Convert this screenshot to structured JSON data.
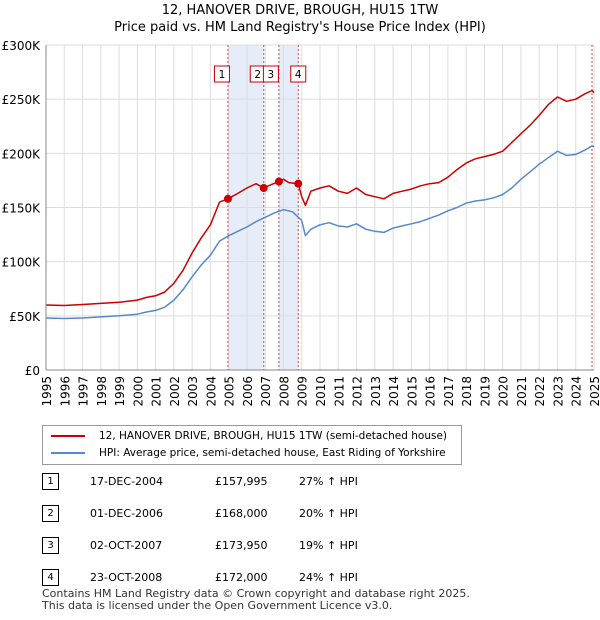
{
  "title": {
    "line1": "12, HANOVER DRIVE, BROUGH, HU15 1TW",
    "line2": "Price paid vs. HM Land Registry's House Price Index (HPI)"
  },
  "chart_data": {
    "type": "line",
    "title": "12, HANOVER DRIVE, BROUGH, HU15 1TW — Price paid vs. HM Land Registry's House Price Index (HPI)",
    "xlim": [
      1995,
      2025
    ],
    "ylim": [
      0,
      300000
    ],
    "y_ticks": [
      {
        "value": 0,
        "label": "£0"
      },
      {
        "value": 50000,
        "label": "£50K"
      },
      {
        "value": 100000,
        "label": "£100K"
      },
      {
        "value": 150000,
        "label": "£150K"
      },
      {
        "value": 200000,
        "label": "£200K"
      },
      {
        "value": 250000,
        "label": "£250K"
      },
      {
        "value": 300000,
        "label": "£300K"
      }
    ],
    "x_ticks": [
      "1995",
      "1996",
      "1997",
      "1998",
      "1999",
      "2000",
      "2001",
      "2002",
      "2003",
      "2004",
      "2005",
      "2006",
      "2007",
      "2008",
      "2009",
      "2010",
      "2011",
      "2012",
      "2013",
      "2014",
      "2015",
      "2016",
      "2017",
      "2018",
      "2019",
      "2020",
      "2021",
      "2022",
      "2023",
      "2024",
      "2025"
    ],
    "grid": true,
    "series": [
      {
        "name": "12, HANOVER DRIVE, BROUGH, HU15 1TW (semi-detached house)",
        "color": "#cc0000",
        "points": [
          [
            1995.0,
            60000
          ],
          [
            1996.0,
            59500
          ],
          [
            1997.0,
            60500
          ],
          [
            1998.0,
            61500
          ],
          [
            1999.0,
            62500
          ],
          [
            2000.0,
            64500
          ],
          [
            2000.5,
            67000
          ],
          [
            2001.0,
            68500
          ],
          [
            2001.5,
            72000
          ],
          [
            2002.0,
            80000
          ],
          [
            2002.5,
            92000
          ],
          [
            2003.0,
            108000
          ],
          [
            2003.5,
            122000
          ],
          [
            2004.0,
            134000
          ],
          [
            2004.5,
            155000
          ],
          [
            2004.96,
            157995
          ],
          [
            2005.5,
            163000
          ],
          [
            2006.0,
            168000
          ],
          [
            2006.5,
            172000
          ],
          [
            2006.92,
            168000
          ],
          [
            2007.3,
            171000
          ],
          [
            2007.75,
            173950
          ],
          [
            2008.0,
            176000
          ],
          [
            2008.3,
            173000
          ],
          [
            2008.81,
            172000
          ],
          [
            2009.0,
            160000
          ],
          [
            2009.2,
            152000
          ],
          [
            2009.5,
            165000
          ],
          [
            2010.0,
            168000
          ],
          [
            2010.5,
            170000
          ],
          [
            2011.0,
            165000
          ],
          [
            2011.5,
            163000
          ],
          [
            2012.0,
            168000
          ],
          [
            2012.5,
            162000
          ],
          [
            2013.0,
            160000
          ],
          [
            2013.5,
            158000
          ],
          [
            2014.0,
            163000
          ],
          [
            2014.5,
            165000
          ],
          [
            2015.0,
            167000
          ],
          [
            2015.5,
            170000
          ],
          [
            2016.0,
            172000
          ],
          [
            2016.5,
            173000
          ],
          [
            2017.0,
            178000
          ],
          [
            2017.5,
            185000
          ],
          [
            2018.0,
            191000
          ],
          [
            2018.5,
            195000
          ],
          [
            2019.0,
            197000
          ],
          [
            2019.5,
            199000
          ],
          [
            2020.0,
            202000
          ],
          [
            2020.5,
            210000
          ],
          [
            2021.0,
            218000
          ],
          [
            2021.5,
            226000
          ],
          [
            2022.0,
            235000
          ],
          [
            2022.5,
            245000
          ],
          [
            2023.0,
            252000
          ],
          [
            2023.5,
            248000
          ],
          [
            2024.0,
            250000
          ],
          [
            2024.5,
            255000
          ],
          [
            2024.9,
            258000
          ],
          [
            2025.0,
            256000
          ]
        ]
      },
      {
        "name": "HPI: Average price, semi-detached house, East Riding of Yorkshire",
        "color": "#5588cc",
        "points": [
          [
            1995.0,
            48000
          ],
          [
            1996.0,
            47500
          ],
          [
            1997.0,
            48000
          ],
          [
            1998.0,
            49000
          ],
          [
            1999.0,
            50000
          ],
          [
            2000.0,
            51500
          ],
          [
            2000.5,
            53500
          ],
          [
            2001.0,
            55000
          ],
          [
            2001.5,
            58000
          ],
          [
            2002.0,
            64500
          ],
          [
            2002.5,
            74000
          ],
          [
            2003.0,
            86000
          ],
          [
            2003.5,
            97000
          ],
          [
            2004.0,
            106000
          ],
          [
            2004.5,
            119000
          ],
          [
            2005.0,
            124000
          ],
          [
            2005.5,
            128000
          ],
          [
            2006.0,
            132000
          ],
          [
            2006.5,
            137000
          ],
          [
            2007.0,
            141000
          ],
          [
            2007.5,
            145000
          ],
          [
            2008.0,
            148000
          ],
          [
            2008.5,
            146000
          ],
          [
            2009.0,
            138000
          ],
          [
            2009.2,
            124000
          ],
          [
            2009.5,
            130000
          ],
          [
            2010.0,
            134000
          ],
          [
            2010.5,
            136000
          ],
          [
            2011.0,
            133000
          ],
          [
            2011.5,
            132000
          ],
          [
            2012.0,
            135000
          ],
          [
            2012.5,
            130000
          ],
          [
            2013.0,
            128000
          ],
          [
            2013.5,
            127000
          ],
          [
            2014.0,
            131000
          ],
          [
            2014.5,
            133000
          ],
          [
            2015.0,
            135000
          ],
          [
            2015.5,
            137000
          ],
          [
            2016.0,
            140000
          ],
          [
            2016.5,
            143000
          ],
          [
            2017.0,
            147000
          ],
          [
            2017.5,
            150000
          ],
          [
            2018.0,
            154000
          ],
          [
            2018.5,
            156000
          ],
          [
            2019.0,
            157000
          ],
          [
            2019.5,
            159000
          ],
          [
            2020.0,
            162000
          ],
          [
            2020.5,
            168000
          ],
          [
            2021.0,
            176000
          ],
          [
            2021.5,
            183000
          ],
          [
            2022.0,
            190000
          ],
          [
            2022.5,
            196000
          ],
          [
            2023.0,
            202000
          ],
          [
            2023.5,
            198000
          ],
          [
            2024.0,
            199000
          ],
          [
            2024.5,
            203000
          ],
          [
            2024.9,
            207000
          ],
          [
            2025.0,
            206000
          ]
        ]
      }
    ],
    "sales": [
      {
        "label": "1",
        "x": 2004.96,
        "y": 157995
      },
      {
        "label": "2",
        "x": 2006.92,
        "y": 168000
      },
      {
        "label": "3",
        "x": 2007.75,
        "y": 173950
      },
      {
        "label": "4",
        "x": 2008.81,
        "y": 172000
      }
    ],
    "shaded_ranges": [
      [
        2004.96,
        2006.92
      ],
      [
        2007.75,
        2008.81
      ]
    ],
    "end_marker_x": 2025.0
  },
  "legend": {
    "property_label": "12, HANOVER DRIVE, BROUGH, HU15 1TW (semi-detached house)",
    "hpi_label": "HPI: Average price, semi-detached house, East Riding of Yorkshire",
    "property_color": "#cc0000",
    "hpi_color": "#5588cc"
  },
  "sales_table": [
    {
      "num": "1",
      "date": "17-DEC-2004",
      "price": "£157,995",
      "hpi": "27% ↑ HPI"
    },
    {
      "num": "2",
      "date": "01-DEC-2006",
      "price": "£168,000",
      "hpi": "20% ↑ HPI"
    },
    {
      "num": "3",
      "date": "02-OCT-2007",
      "price": "£173,950",
      "hpi": "19% ↑ HPI"
    },
    {
      "num": "4",
      "date": "23-OCT-2008",
      "price": "£172,000",
      "hpi": "24% ↑ HPI"
    }
  ],
  "footer": {
    "line1": "Contains HM Land Registry data © Crown copyright and database right 2025.",
    "line2": "This data is licensed under the Open Government Licence v3.0."
  }
}
